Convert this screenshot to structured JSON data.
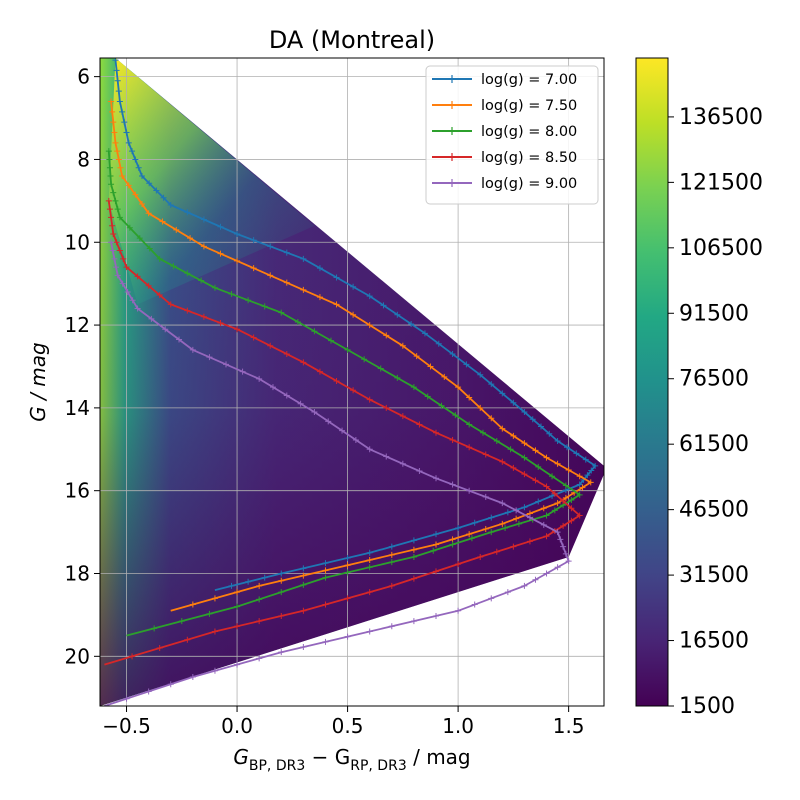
{
  "chart_data": {
    "type": "line",
    "title": "DA (Montreal)",
    "xlabel": {
      "main": "G",
      "sub1": "BP, DR3",
      "mid": " − G",
      "sub2": "RP, DR3",
      "tail": " / mag"
    },
    "ylabel": "G / mag",
    "xlim": [
      -0.62,
      1.66
    ],
    "ylim": [
      21.2,
      5.55
    ],
    "y_inverted": true,
    "grid": true,
    "legend_position": "top-right",
    "x_ticks": [
      -0.5,
      0.0,
      0.5,
      1.0,
      1.5
    ],
    "x_tick_labels": [
      "−0.5",
      "0.0",
      "0.5",
      "1.0",
      "1.5"
    ],
    "y_ticks": [
      6,
      8,
      10,
      12,
      14,
      16,
      18,
      20
    ],
    "y_tick_labels": [
      "6",
      "8",
      "10",
      "12",
      "14",
      "16",
      "18",
      "20"
    ],
    "colorbar": {
      "colormap": "viridis",
      "range": [
        1500,
        150000
      ],
      "ticks": [
        1500,
        16500,
        31500,
        46500,
        61500,
        76500,
        91500,
        106500,
        121500,
        136500
      ],
      "tick_labels": [
        "1500",
        "16500",
        "31500",
        "46500",
        "61500",
        "76500",
        "91500",
        "106500",
        "121500",
        "136500"
      ]
    },
    "series": [
      {
        "name": "log(g) = 7.00",
        "color": "#1f77b4",
        "points": [
          [
            -0.55,
            5.6
          ],
          [
            -0.53,
            6.6
          ],
          [
            -0.49,
            7.6
          ],
          [
            -0.43,
            8.4
          ],
          [
            -0.3,
            9.1
          ],
          [
            0.0,
            9.8
          ],
          [
            0.3,
            10.4
          ],
          [
            0.6,
            11.3
          ],
          [
            0.85,
            12.2
          ],
          [
            1.1,
            13.2
          ],
          [
            1.3,
            14.1
          ],
          [
            1.45,
            14.8
          ],
          [
            1.62,
            15.4
          ],
          [
            1.55,
            15.85
          ],
          [
            1.3,
            16.4
          ],
          [
            1.0,
            16.9
          ],
          [
            0.6,
            17.5
          ],
          [
            0.2,
            18.0
          ],
          [
            -0.1,
            18.4
          ]
        ]
      },
      {
        "name": "log(g) = 7.50",
        "color": "#ff7f0e",
        "points": [
          [
            -0.57,
            6.6
          ],
          [
            -0.55,
            7.6
          ],
          [
            -0.52,
            8.4
          ],
          [
            -0.4,
            9.3
          ],
          [
            -0.15,
            10.1
          ],
          [
            0.15,
            10.8
          ],
          [
            0.45,
            11.5
          ],
          [
            0.75,
            12.5
          ],
          [
            1.0,
            13.5
          ],
          [
            1.2,
            14.5
          ],
          [
            1.4,
            15.2
          ],
          [
            1.6,
            15.8
          ],
          [
            1.45,
            16.3
          ],
          [
            1.2,
            16.8
          ],
          [
            0.9,
            17.3
          ],
          [
            0.5,
            17.8
          ],
          [
            0.1,
            18.3
          ],
          [
            -0.3,
            18.9
          ]
        ]
      },
      {
        "name": "log(g) = 8.00",
        "color": "#2ca02c",
        "points": [
          [
            -0.58,
            7.8
          ],
          [
            -0.57,
            8.6
          ],
          [
            -0.53,
            9.4
          ],
          [
            -0.35,
            10.4
          ],
          [
            -0.1,
            11.1
          ],
          [
            0.2,
            11.7
          ],
          [
            0.5,
            12.6
          ],
          [
            0.8,
            13.5
          ],
          [
            1.05,
            14.4
          ],
          [
            1.3,
            15.2
          ],
          [
            1.55,
            16.1
          ],
          [
            1.4,
            16.6
          ],
          [
            1.15,
            17.0
          ],
          [
            0.8,
            17.6
          ],
          [
            0.4,
            18.1
          ],
          [
            0.0,
            18.8
          ],
          [
            -0.5,
            19.5
          ]
        ]
      },
      {
        "name": "log(g) = 8.50",
        "color": "#d62728",
        "points": [
          [
            -0.58,
            9.0
          ],
          [
            -0.56,
            9.8
          ],
          [
            -0.5,
            10.6
          ],
          [
            -0.3,
            11.5
          ],
          [
            0.0,
            12.1
          ],
          [
            0.3,
            12.9
          ],
          [
            0.6,
            13.8
          ],
          [
            0.9,
            14.6
          ],
          [
            1.2,
            15.3
          ],
          [
            1.4,
            15.9
          ],
          [
            1.55,
            16.6
          ],
          [
            1.4,
            17.1
          ],
          [
            1.1,
            17.6
          ],
          [
            0.7,
            18.3
          ],
          [
            0.3,
            18.9
          ],
          [
            -0.1,
            19.4
          ],
          [
            -0.6,
            20.2
          ]
        ]
      },
      {
        "name": "log(g) = 9.00",
        "color": "#9467bd",
        "points": [
          [
            -0.57,
            10.0
          ],
          [
            -0.54,
            10.8
          ],
          [
            -0.45,
            11.6
          ],
          [
            -0.2,
            12.6
          ],
          [
            0.1,
            13.3
          ],
          [
            0.35,
            14.1
          ],
          [
            0.6,
            15.0
          ],
          [
            0.9,
            15.7
          ],
          [
            1.2,
            16.3
          ],
          [
            1.45,
            17.0
          ],
          [
            1.5,
            17.7
          ],
          [
            1.3,
            18.3
          ],
          [
            1.0,
            18.9
          ],
          [
            0.6,
            19.4
          ],
          [
            0.2,
            19.9
          ],
          [
            -0.2,
            20.5
          ],
          [
            -0.6,
            21.2
          ]
        ]
      }
    ]
  }
}
